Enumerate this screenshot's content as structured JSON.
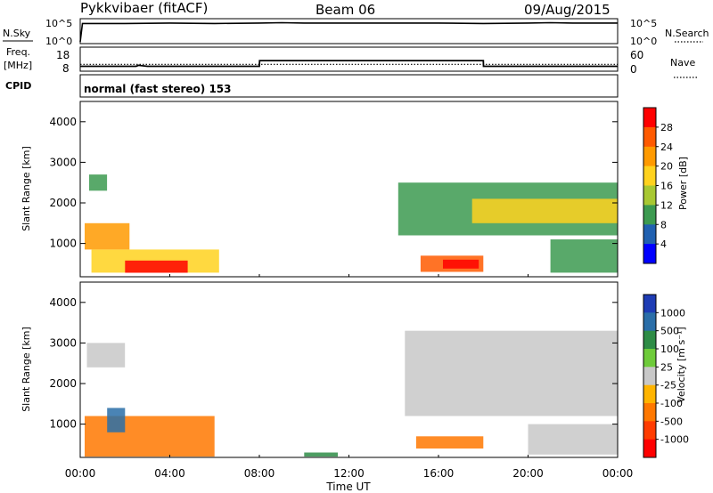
{
  "header": {
    "radar_title": "Pykkvibaer (fitACF)",
    "beam": "Beam 06",
    "date": "09/Aug/2015"
  },
  "nsky_panel": {
    "left_label": "N.Sky",
    "left_ticks": [
      "10^5",
      "10^0"
    ],
    "right_label": "N.Search",
    "right_ticks": [
      "10^5",
      "10^0"
    ]
  },
  "freq_panel": {
    "left_label_1": "Freq.",
    "left_label_2": "[MHz]",
    "left_ticks": [
      "18",
      "8"
    ],
    "right_label": "Nave",
    "right_ticks": [
      "60",
      "0"
    ]
  },
  "cpid": {
    "label": "CPID",
    "mode_text": "normal (fast stereo) 153"
  },
  "power_panel": {
    "ylabel": "Slant Range [km]",
    "colorbar_label": "Power [dB]",
    "colorbar_ticks": [
      "28",
      "24",
      "20",
      "16",
      "12",
      "8",
      "4"
    ],
    "colorbar_colors": [
      "#ff0000",
      "#ff5a00",
      "#ff9a00",
      "#ffd21e",
      "#a8c832",
      "#3c9a50",
      "#2060b0",
      "#0000ff"
    ]
  },
  "velocity_panel": {
    "ylabel": "Slant Range [km]",
    "colorbar_label": "Velocity [m s⁻¹]",
    "colorbar_ticks": [
      "1000",
      "500",
      "100",
      "25",
      "-25",
      "-100",
      "-500",
      "-1000"
    ],
    "colorbar_colors": [
      "#1e3cb4",
      "#2a6ea8",
      "#2e8c46",
      "#6ecb3a",
      "#c8c8c8",
      "#ffb400",
      "#ff7800",
      "#ff3c00",
      "#ff0000"
    ]
  },
  "x_axis": {
    "label": "Time UT",
    "ticks": [
      "00:00",
      "04:00",
      "08:00",
      "12:00",
      "16:00",
      "20:00",
      "00:00"
    ]
  },
  "chart_data": [
    {
      "type": "line",
      "title": "N.Sky / N.Search",
      "yscale": "log",
      "ylim": [
        1,
        100000
      ],
      "x_hours": [
        0,
        0.1,
        2,
        4,
        6,
        8,
        9,
        10,
        12,
        14,
        16,
        18,
        20,
        21,
        22,
        24
      ],
      "series": [
        {
          "name": "N.Sky",
          "values": [
            1,
            20000,
            20000,
            25000,
            20000,
            25000,
            30000,
            25000,
            25000,
            25000,
            25000,
            20000,
            25000,
            30000,
            25000,
            25000
          ]
        }
      ]
    },
    {
      "type": "line",
      "title": "Freq. [MHz] / Nave",
      "x_hours": [
        0,
        2.5,
        2.6,
        3.0,
        8.0,
        8.01,
        18.0,
        18.01,
        24
      ],
      "series": [
        {
          "name": "Freq.",
          "values": [
            9.5,
            9.5,
            10,
            9.5,
            9.5,
            12.3,
            12.3,
            9.5,
            9.5
          ]
        },
        {
          "name": "Nave",
          "values": [
            15,
            15,
            15,
            15,
            15,
            15,
            15,
            15,
            15
          ]
        }
      ],
      "ylim": [
        8,
        18
      ],
      "ylim_right": [
        0,
        60
      ]
    },
    {
      "type": "heatmap",
      "title": "Power [dB]",
      "xlim_hours": [
        0,
        24
      ],
      "ylim": [
        180,
        4500
      ],
      "yticks": [
        1000,
        2000,
        3000,
        4000
      ],
      "patches": [
        {
          "t0": 0.4,
          "t1": 1.2,
          "r0": 2300,
          "r1": 2700,
          "value": 6
        },
        {
          "t0": 0.2,
          "t1": 2.2,
          "r0": 850,
          "r1": 1500,
          "value": 18
        },
        {
          "t0": 0.5,
          "t1": 6.2,
          "r0": 280,
          "r1": 850,
          "value": 14
        },
        {
          "t0": 2.0,
          "t1": 4.8,
          "r0": 280,
          "r1": 580,
          "value": 27
        },
        {
          "t0": 15.2,
          "t1": 18.0,
          "r0": 300,
          "r1": 700,
          "value": 22
        },
        {
          "t0": 16.2,
          "t1": 17.8,
          "r0": 380,
          "r1": 600,
          "value": 27
        },
        {
          "t0": 14.2,
          "t1": 24.0,
          "r0": 1200,
          "r1": 2500,
          "value": 8
        },
        {
          "t0": 17.5,
          "t1": 24.0,
          "r0": 1500,
          "r1": 2100,
          "value": 16
        },
        {
          "t0": 21.0,
          "t1": 24.0,
          "r0": 280,
          "r1": 1100,
          "value": 8
        }
      ]
    },
    {
      "type": "heatmap",
      "title": "Velocity [m s⁻¹]",
      "xlim_hours": [
        0,
        24
      ],
      "ylim": [
        180,
        4500
      ],
      "yticks": [
        1000,
        2000,
        3000,
        4000
      ],
      "patches": [
        {
          "t0": 0.3,
          "t1": 2.0,
          "r0": 2400,
          "r1": 3000,
          "value": 0
        },
        {
          "t0": 0.2,
          "t1": 6.0,
          "r0": 200,
          "r1": 1200,
          "value": -300
        },
        {
          "t0": 1.2,
          "t1": 2.0,
          "r0": 800,
          "r1": 1400,
          "value": 600
        },
        {
          "t0": 10.0,
          "t1": 11.5,
          "r0": 200,
          "r1": 300,
          "value": 60
        },
        {
          "t0": 15.0,
          "t1": 18.0,
          "r0": 400,
          "r1": 700,
          "value": -300
        },
        {
          "t0": 14.5,
          "t1": 24.0,
          "r0": 1200,
          "r1": 3300,
          "value": 0
        },
        {
          "t0": 20.0,
          "t1": 24.0,
          "r0": 250,
          "r1": 1000,
          "value": 0
        }
      ]
    }
  ]
}
